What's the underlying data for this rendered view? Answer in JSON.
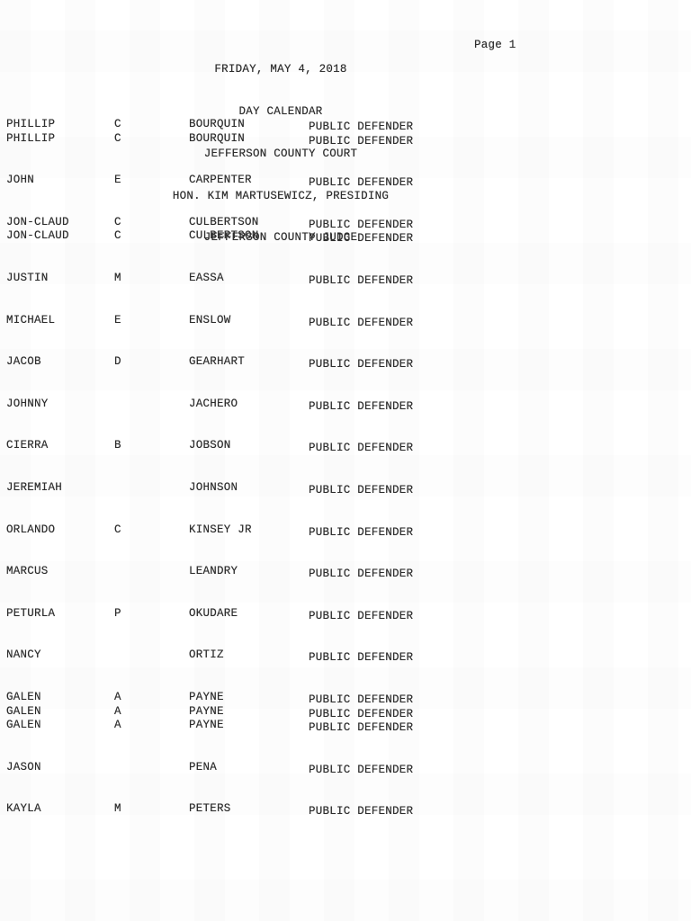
{
  "colors": {
    "ink": "#2d2d2d",
    "paper": "#ffffff"
  },
  "header": {
    "lines": [
      "FRIDAY, MAY 4, 2018",
      "DAY CALENDAR",
      "JEFFERSON COUNTY COURT",
      "HON. KIM MARTUSEWICZ, PRESIDING",
      "JEFFERSON COUNTY JUDGE"
    ],
    "page_label": "Page 1"
  },
  "calendar": {
    "groups": [
      {
        "lines": [
          {
            "first": "PHILLIP",
            "middle": "C",
            "last": "BOURQUIN",
            "counsel": "PUBLIC DEFENDER"
          },
          {
            "first": "PHILLIP",
            "middle": "C",
            "last": "BOURQUIN",
            "counsel": "PUBLIC DEFENDER"
          }
        ]
      },
      {
        "lines": [
          {
            "first": "JOHN",
            "middle": "E",
            "last": "CARPENTER",
            "counsel": "PUBLIC DEFENDER"
          }
        ]
      },
      {
        "lines": [
          {
            "first": "JON-CLAUD",
            "middle": "C",
            "last": "CULBERTSON",
            "counsel": "PUBLIC DEFENDER"
          },
          {
            "first": "JON-CLAUD",
            "middle": "C",
            "last": "CULBERTSON",
            "counsel": "PUBLIC DEFENDER"
          }
        ]
      },
      {
        "lines": [
          {
            "first": "JUSTIN",
            "middle": "M",
            "last": "EASSA",
            "counsel": "PUBLIC DEFENDER"
          }
        ]
      },
      {
        "lines": [
          {
            "first": "MICHAEL",
            "middle": "E",
            "last": "ENSLOW",
            "counsel": "PUBLIC DEFENDER"
          }
        ]
      },
      {
        "lines": [
          {
            "first": "JACOB",
            "middle": "D",
            "last": "GEARHART",
            "counsel": "PUBLIC DEFENDER"
          }
        ]
      },
      {
        "lines": [
          {
            "first": "JOHNNY",
            "middle": "",
            "last": "JACHERO",
            "counsel": "PUBLIC DEFENDER"
          }
        ]
      },
      {
        "lines": [
          {
            "first": "CIERRA",
            "middle": "B",
            "last": "JOBSON",
            "counsel": "PUBLIC DEFENDER"
          }
        ]
      },
      {
        "lines": [
          {
            "first": "JEREMIAH",
            "middle": "",
            "last": "JOHNSON",
            "counsel": "PUBLIC DEFENDER"
          }
        ]
      },
      {
        "lines": [
          {
            "first": "ORLANDO",
            "middle": "C",
            "last": "KINSEY JR",
            "counsel": "PUBLIC DEFENDER"
          }
        ]
      },
      {
        "lines": [
          {
            "first": "MARCUS",
            "middle": "",
            "last": "LEANDRY",
            "counsel": "PUBLIC DEFENDER"
          }
        ]
      },
      {
        "lines": [
          {
            "first": "PETURLA",
            "middle": "P",
            "last": "OKUDARE",
            "counsel": "PUBLIC DEFENDER"
          }
        ]
      },
      {
        "lines": [
          {
            "first": "NANCY",
            "middle": "",
            "last": "ORTIZ",
            "counsel": "PUBLIC DEFENDER"
          }
        ]
      },
      {
        "lines": [
          {
            "first": "GALEN",
            "middle": "A",
            "last": "PAYNE",
            "counsel": "PUBLIC DEFENDER"
          },
          {
            "first": "GALEN",
            "middle": "A",
            "last": "PAYNE",
            "counsel": "PUBLIC DEFENDER"
          },
          {
            "first": "GALEN",
            "middle": "A",
            "last": "PAYNE",
            "counsel": "PUBLIC DEFENDER"
          }
        ]
      },
      {
        "lines": [
          {
            "first": "JASON",
            "middle": "",
            "last": "PENA",
            "counsel": "PUBLIC DEFENDER"
          }
        ]
      },
      {
        "lines": [
          {
            "first": "KAYLA",
            "middle": "M",
            "last": "PETERS",
            "counsel": "PUBLIC DEFENDER"
          }
        ]
      }
    ]
  }
}
